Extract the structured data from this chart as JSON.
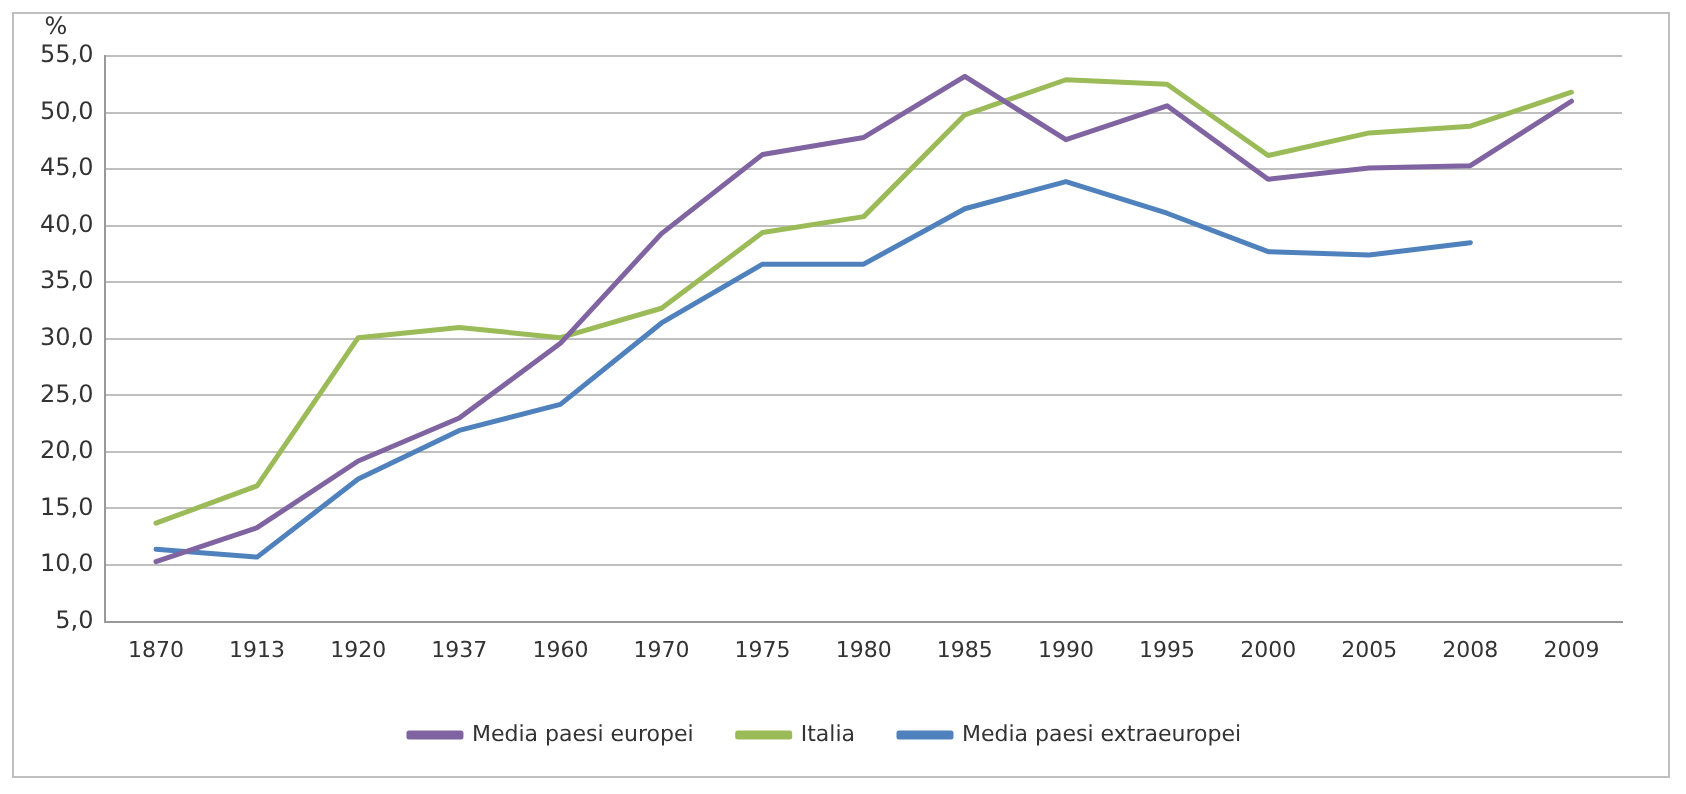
{
  "chart_data": {
    "type": "line",
    "ylabel": "%",
    "categories": [
      "1870",
      "1913",
      "1920",
      "1937",
      "1960",
      "1970",
      "1975",
      "1980",
      "1985",
      "1990",
      "1995",
      "2000",
      "2005",
      "2008",
      "2009"
    ],
    "series": [
      {
        "name": "Media paesi europei",
        "color": "#8064a2",
        "values": [
          10.3,
          13.3,
          19.2,
          23.0,
          29.6,
          39.3,
          46.3,
          47.8,
          53.2,
          47.6,
          50.6,
          44.1,
          45.1,
          45.3,
          51.0
        ]
      },
      {
        "name": "Italia",
        "color": "#9bbb59",
        "values": [
          13.7,
          17.0,
          30.1,
          31.0,
          30.1,
          32.7,
          39.4,
          40.8,
          49.8,
          52.9,
          52.5,
          46.2,
          48.2,
          48.8,
          51.8
        ]
      },
      {
        "name": "Media paesi extraeuropei",
        "color": "#4f81bd",
        "values": [
          11.4,
          10.7,
          17.6,
          21.9,
          24.2,
          31.4,
          36.6,
          36.6,
          41.5,
          43.9,
          41.1,
          37.7,
          37.4,
          38.5,
          null
        ]
      }
    ],
    "ylim": [
      5,
      55
    ],
    "yticks": [
      {
        "value": 5,
        "label": "5,0"
      },
      {
        "value": 10,
        "label": "10,0"
      },
      {
        "value": 15,
        "label": "15,0"
      },
      {
        "value": 20,
        "label": "20,0"
      },
      {
        "value": 25,
        "label": "25,0"
      },
      {
        "value": 30,
        "label": "30,0"
      },
      {
        "value": 35,
        "label": "35,0"
      },
      {
        "value": 40,
        "label": "40,0"
      },
      {
        "value": 45,
        "label": "45,0"
      },
      {
        "value": 50,
        "label": "50,0"
      },
      {
        "value": 55,
        "label": "55,0"
      }
    ],
    "grid": "y",
    "legend": "bottom",
    "marker": "none",
    "line_style": "solid"
  }
}
